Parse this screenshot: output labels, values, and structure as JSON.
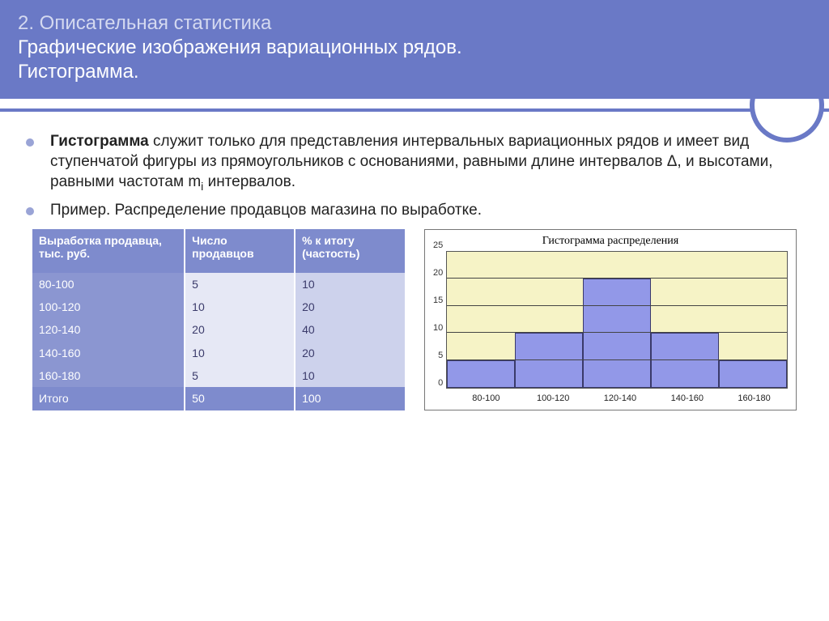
{
  "header": {
    "line1": "2. Описательная статистика",
    "line2a": "Графические изображения вариационных рядов.",
    "line2b": "Гистограмма."
  },
  "bullets": {
    "b1_bold": "Гистограмма",
    "b1_rest": " служит только для представления интервальных вариационных рядов и имеет вид ступенчатой фигуры из прямоугольников с основаниями, равными длине интервалов Δ, и высотами, равными частотам m",
    "b1_sub": "i",
    "b1_tail": " интервалов.",
    "b2": "Пример. Распределение продавцов магазина по выработке."
  },
  "table": {
    "head": {
      "c0a": "Выработка продавца,",
      "c0b": "тыс. руб.",
      "c1a": "Число",
      "c1b": "продавцов",
      "c2a": "% к итогу",
      "c2b": "(частость)"
    },
    "rows": [
      {
        "range": "80-100",
        "count": "5",
        "pct": "10"
      },
      {
        "range": "100-120",
        "count": "10",
        "pct": "20"
      },
      {
        "range": "120-140",
        "count": "20",
        "pct": "40"
      },
      {
        "range": "140-160",
        "count": "10",
        "pct": "20"
      },
      {
        "range": "160-180",
        "count": "5",
        "pct": "10"
      }
    ],
    "total": {
      "label": "Итого",
      "count": "50",
      "pct": "100"
    }
  },
  "chart": {
    "type": "histogram",
    "title": "Гистограмма распределения",
    "categories": [
      "80-100",
      "100-120",
      "120-140",
      "140-160",
      "160-180"
    ],
    "values": [
      5,
      10,
      20,
      10,
      5
    ],
    "ylim": [
      0,
      25
    ],
    "ytick_step": 5,
    "yticks": [
      "0",
      "5",
      "10",
      "15",
      "20",
      "25"
    ],
    "bar_color": "#9298e8",
    "bar_border": "#3a3a6a",
    "plot_background": "#f6f3c6",
    "grid_color": "#444444",
    "axis_fontsize": 11,
    "title_fontsize": 14
  },
  "colors": {
    "header_bg": "#6a79c6",
    "table_header_bg": "#7e8bcd",
    "table_col0_bg": "#8b96d1",
    "table_col1_bg": "#e6e8f5",
    "table_col2_bg": "#cdd2ec"
  }
}
